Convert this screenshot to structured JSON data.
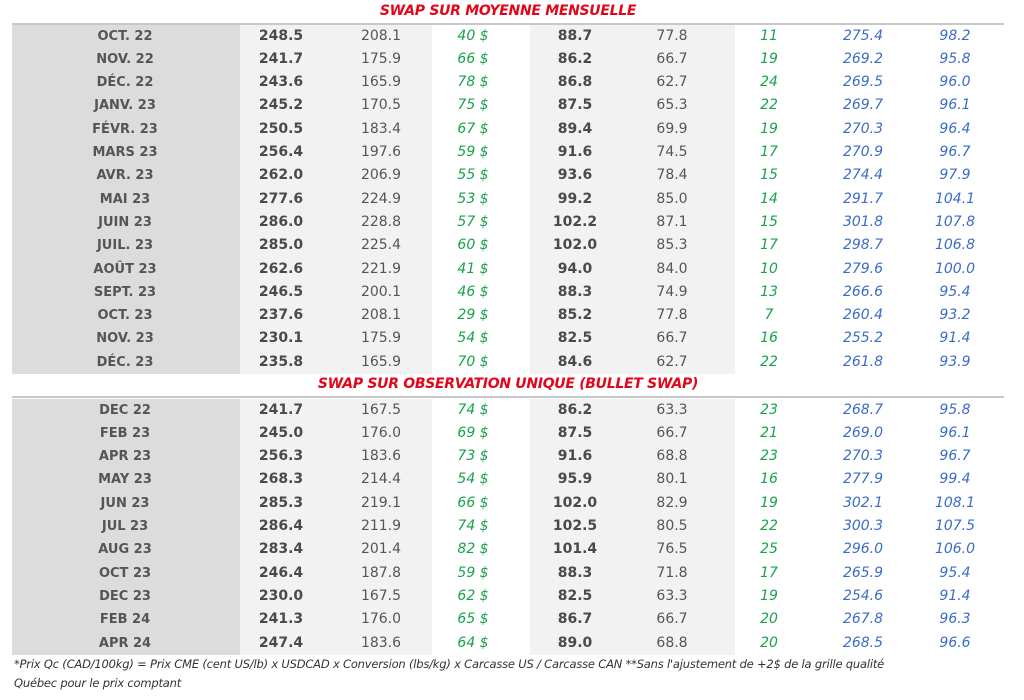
{
  "colors": {
    "title": "#e3061a",
    "green": "#16a34a",
    "blue": "#3a6cc8",
    "label_band": "#dcdcdc",
    "light_band": "#f2f2f2"
  },
  "sections": [
    {
      "title": "SWAP SUR MOYENNE MENSUELLE",
      "rows": [
        [
          "OCT. 22",
          "248.5",
          "208.1",
          "40 $",
          "88.7",
          "77.8",
          "11",
          "275.4",
          "98.2"
        ],
        [
          "NOV. 22",
          "241.7",
          "175.9",
          "66 $",
          "86.2",
          "66.7",
          "19",
          "269.2",
          "95.8"
        ],
        [
          "DÉC. 22",
          "243.6",
          "165.9",
          "78 $",
          "86.8",
          "62.7",
          "24",
          "269.5",
          "96.0"
        ],
        [
          "JANV. 23",
          "245.2",
          "170.5",
          "75 $",
          "87.5",
          "65.3",
          "22",
          "269.7",
          "96.1"
        ],
        [
          "FÉVR. 23",
          "250.5",
          "183.4",
          "67 $",
          "89.4",
          "69.9",
          "19",
          "270.3",
          "96.4"
        ],
        [
          "MARS 23",
          "256.4",
          "197.6",
          "59 $",
          "91.6",
          "74.5",
          "17",
          "270.9",
          "96.7"
        ],
        [
          "AVR. 23",
          "262.0",
          "206.9",
          "55 $",
          "93.6",
          "78.4",
          "15",
          "274.4",
          "97.9"
        ],
        [
          "MAI 23",
          "277.6",
          "224.9",
          "53 $",
          "99.2",
          "85.0",
          "14",
          "291.7",
          "104.1"
        ],
        [
          "JUIN 23",
          "286.0",
          "228.8",
          "57 $",
          "102.2",
          "87.1",
          "15",
          "301.8",
          "107.8"
        ],
        [
          "JUIL. 23",
          "285.0",
          "225.4",
          "60 $",
          "102.0",
          "85.3",
          "17",
          "298.7",
          "106.8"
        ],
        [
          "AOÛT 23",
          "262.6",
          "221.9",
          "41 $",
          "94.0",
          "84.0",
          "10",
          "279.6",
          "100.0"
        ],
        [
          "SEPT. 23",
          "246.5",
          "200.1",
          "46 $",
          "88.3",
          "74.9",
          "13",
          "266.6",
          "95.4"
        ],
        [
          "OCT. 23",
          "237.6",
          "208.1",
          "29 $",
          "85.2",
          "77.8",
          "7",
          "260.4",
          "93.2"
        ],
        [
          "NOV. 23",
          "230.1",
          "175.9",
          "54 $",
          "82.5",
          "66.7",
          "16",
          "255.2",
          "91.4"
        ],
        [
          "DÉC. 23",
          "235.8",
          "165.9",
          "70 $",
          "84.6",
          "62.7",
          "22",
          "261.8",
          "93.9"
        ]
      ]
    },
    {
      "title": "SWAP SUR OBSERVATION UNIQUE (BULLET SWAP)",
      "rows": [
        [
          "DEC 22",
          "241.7",
          "167.5",
          "74 $",
          "86.2",
          "63.3",
          "23",
          "268.7",
          "95.8"
        ],
        [
          "FEB 23",
          "245.0",
          "176.0",
          "69 $",
          "87.5",
          "66.7",
          "21",
          "269.0",
          "96.1"
        ],
        [
          "APR 23",
          "256.3",
          "183.6",
          "73 $",
          "91.6",
          "68.8",
          "23",
          "270.3",
          "96.7"
        ],
        [
          "MAY 23",
          "268.3",
          "214.4",
          "54 $",
          "95.9",
          "80.1",
          "16",
          "277.9",
          "99.4"
        ],
        [
          "JUN 23",
          "285.3",
          "219.1",
          "66 $",
          "102.0",
          "82.9",
          "19",
          "302.1",
          "108.1"
        ],
        [
          "JUL 23",
          "286.4",
          "211.9",
          "74 $",
          "102.5",
          "80.5",
          "22",
          "300.3",
          "107.5"
        ],
        [
          "AUG 23",
          "283.4",
          "201.4",
          "82 $",
          "101.4",
          "76.5",
          "25",
          "296.0",
          "106.0"
        ],
        [
          "OCT 23",
          "246.4",
          "187.8",
          "59 $",
          "88.3",
          "71.8",
          "17",
          "265.9",
          "95.4"
        ],
        [
          "DEC 23",
          "230.0",
          "167.5",
          "62 $",
          "82.5",
          "63.3",
          "19",
          "254.6",
          "91.4"
        ],
        [
          "FEB 24",
          "241.3",
          "176.0",
          "65 $",
          "86.7",
          "66.7",
          "20",
          "267.8",
          "96.3"
        ],
        [
          "APR 24",
          "247.4",
          "183.6",
          "64 $",
          "89.0",
          "68.8",
          "20",
          "268.5",
          "96.6"
        ]
      ]
    }
  ],
  "footnote": {
    "line1": "*Prix Qc (CAD/100kg) = Prix CME (cent US/lb) x USDCAD x Conversion (lbs/kg) x Carcasse US / Carcasse CAN **Sans l'ajustement de +2$ de la grille qualité",
    "line2": "Québec pour le prix comptant"
  }
}
